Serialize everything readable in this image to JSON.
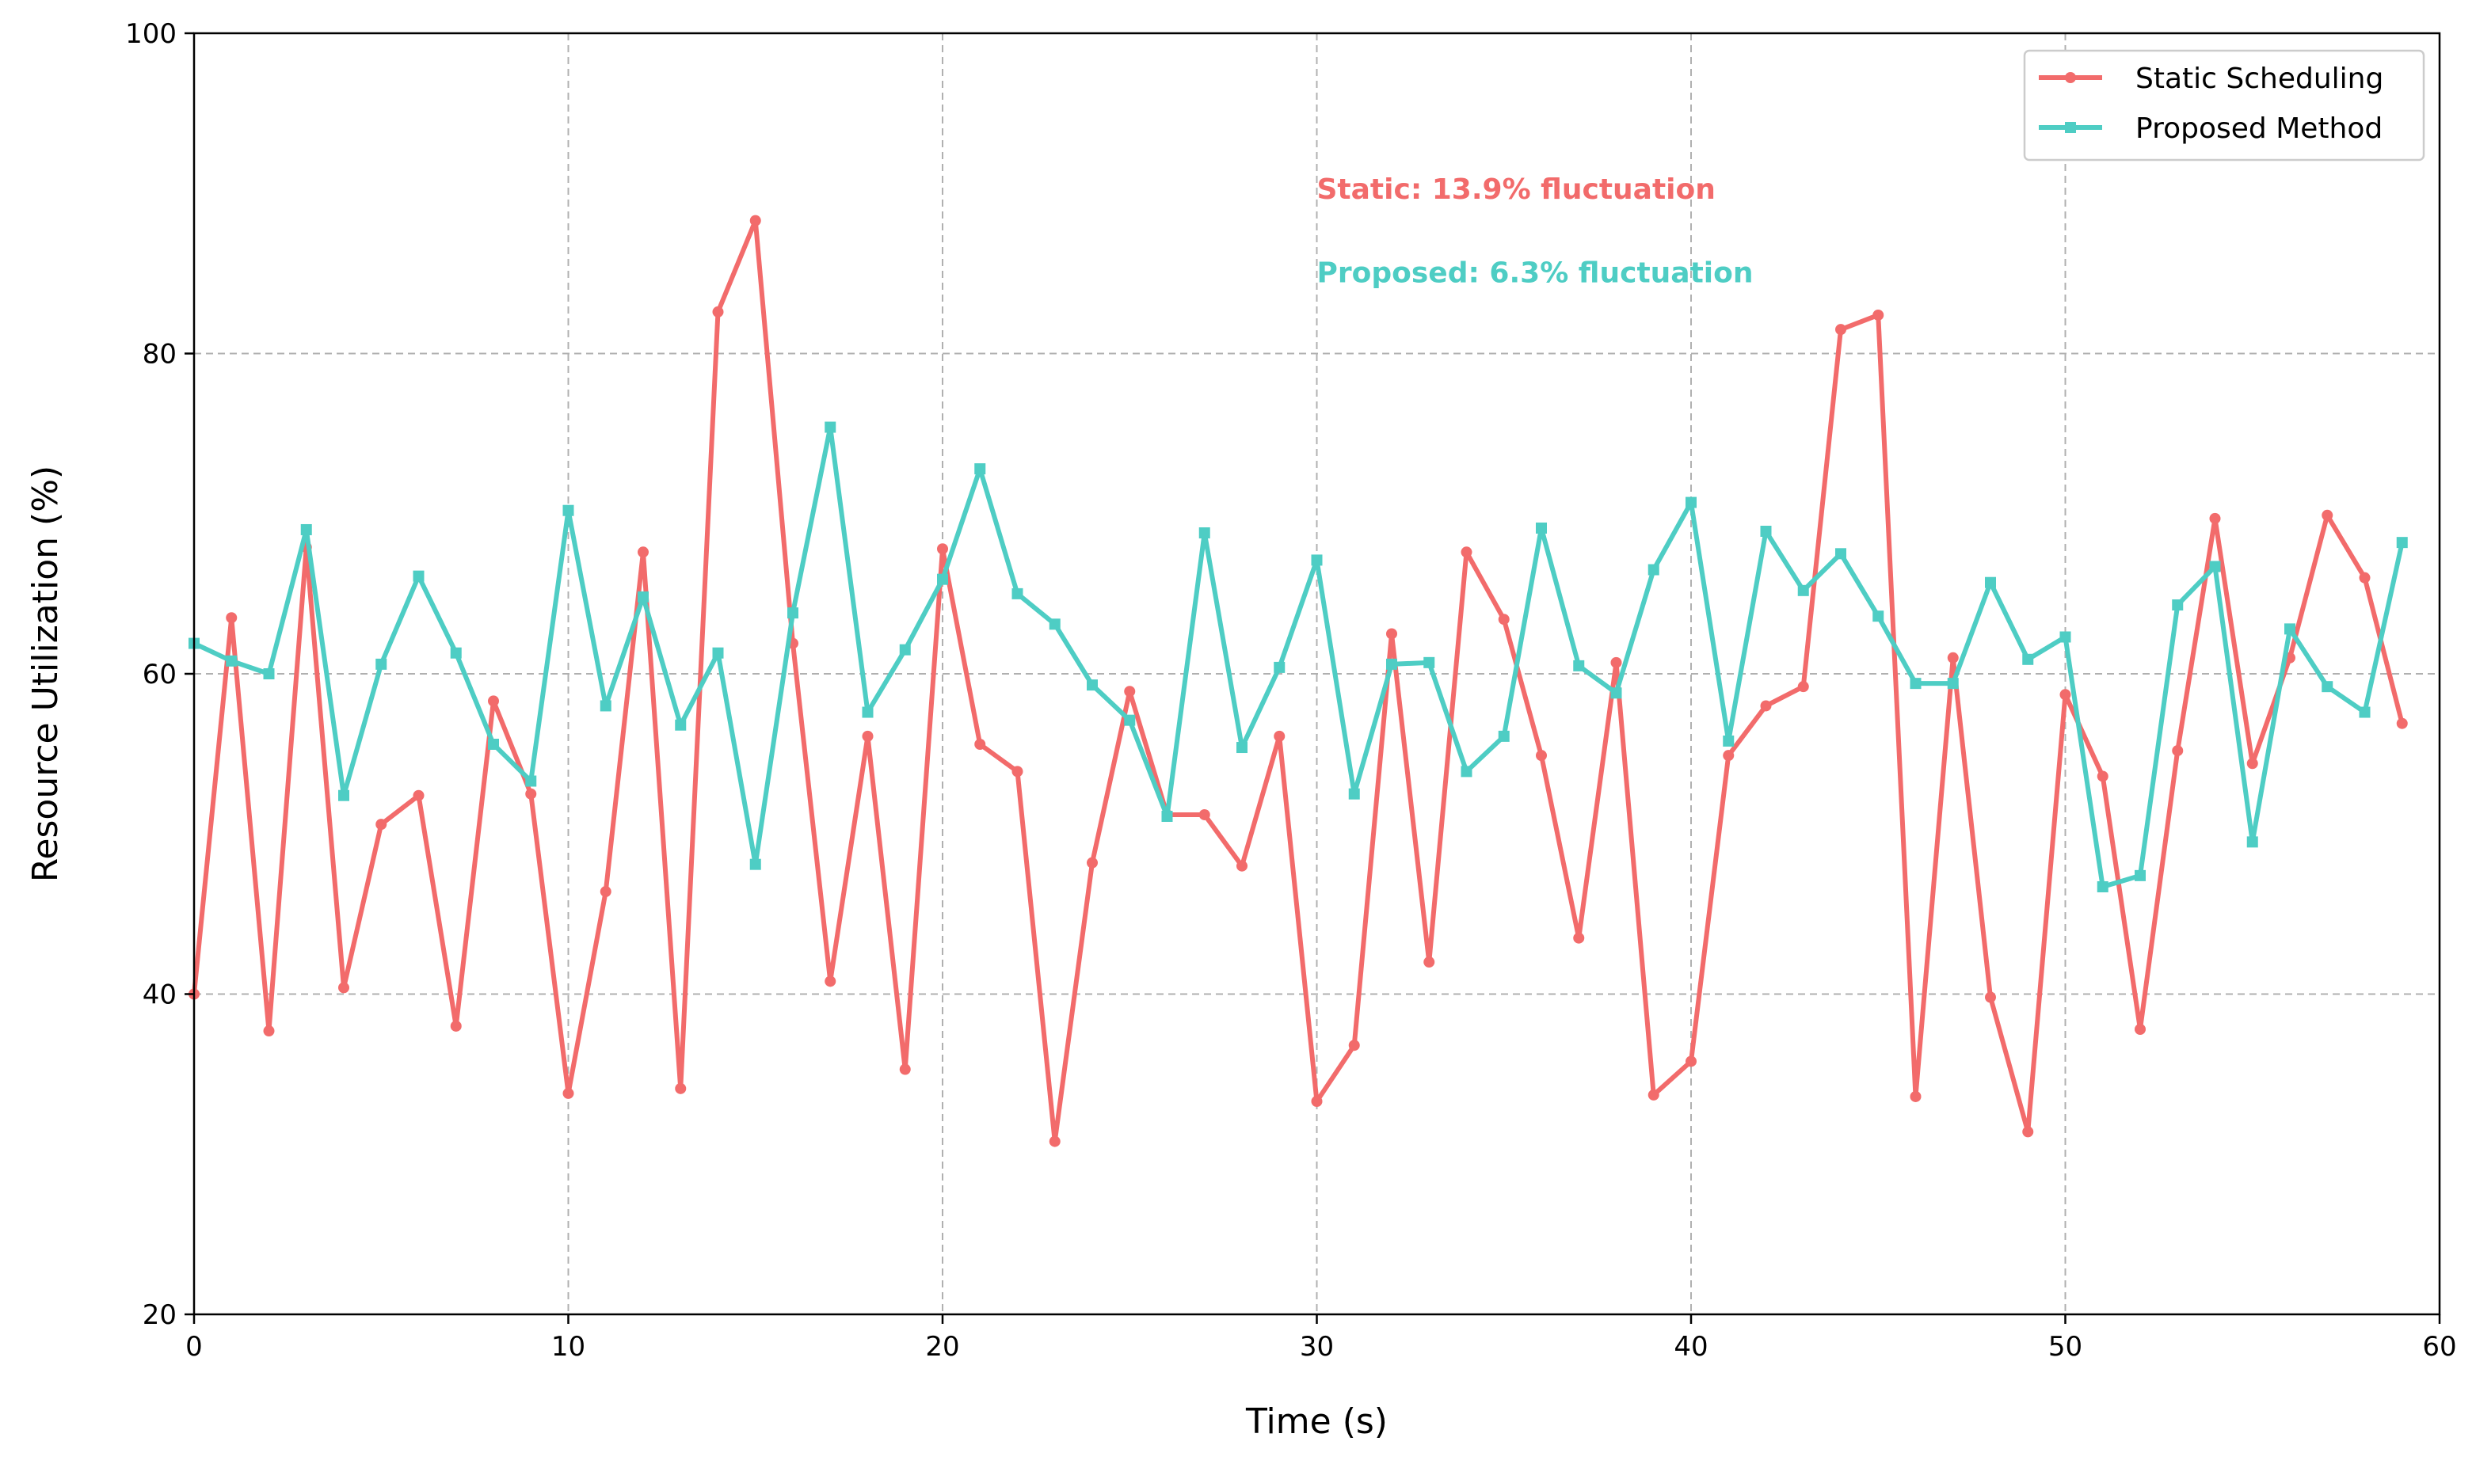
{
  "chart_data": {
    "type": "line",
    "title": "",
    "xlabel": "Time (s)",
    "ylabel": "Resource Utilization (%)",
    "xlim": [
      0,
      60
    ],
    "ylim": [
      20,
      100
    ],
    "xticks": [
      0,
      10,
      20,
      30,
      40,
      50,
      60
    ],
    "yticks": [
      20,
      40,
      60,
      80,
      100
    ],
    "grid": true,
    "legend_position": "top-right",
    "x": [
      0,
      1,
      2,
      3,
      4,
      5,
      6,
      7,
      8,
      9,
      10,
      11,
      12,
      13,
      14,
      15,
      16,
      17,
      18,
      19,
      20,
      21,
      22,
      23,
      24,
      25,
      26,
      27,
      28,
      29,
      30,
      31,
      32,
      33,
      34,
      35,
      36,
      37,
      38,
      39,
      40,
      41,
      42,
      43,
      44,
      45,
      46,
      47,
      48,
      49,
      50,
      51,
      52,
      53,
      54,
      55,
      56,
      57,
      58,
      59
    ],
    "series": [
      {
        "name": "Static Scheduling",
        "color": "#f26b6b",
        "marker": "circle",
        "values": [
          40.0,
          63.5,
          37.7,
          67.9,
          40.4,
          50.6,
          52.4,
          38.0,
          58.3,
          52.5,
          33.8,
          46.4,
          67.6,
          34.1,
          82.6,
          88.3,
          61.9,
          40.8,
          56.1,
          35.3,
          67.8,
          55.6,
          53.9,
          30.8,
          48.2,
          58.9,
          51.2,
          51.2,
          48.0,
          56.1,
          33.3,
          36.8,
          62.5,
          42.0,
          67.6,
          63.4,
          54.9,
          43.5,
          60.7,
          33.7,
          35.8,
          54.9,
          58.0,
          59.2,
          81.5,
          82.4,
          33.6,
          61.0,
          39.8,
          31.4,
          58.7,
          53.6,
          37.8,
          55.2,
          69.7,
          54.4,
          61.0,
          69.9,
          66.0,
          56.9
        ]
      },
      {
        "name": "Proposed Method",
        "color": "#4ecdc4",
        "marker": "square",
        "values": [
          61.9,
          60.8,
          60.0,
          69.0,
          52.4,
          60.6,
          66.1,
          61.3,
          55.6,
          53.3,
          70.2,
          58.0,
          64.8,
          56.8,
          61.3,
          48.1,
          63.8,
          75.4,
          57.6,
          61.5,
          65.9,
          72.8,
          65.0,
          63.1,
          59.3,
          57.1,
          51.1,
          68.8,
          55.4,
          60.4,
          67.1,
          52.5,
          60.6,
          60.7,
          53.9,
          56.1,
          69.1,
          60.5,
          58.8,
          66.5,
          70.7,
          55.8,
          68.9,
          65.2,
          67.5,
          63.6,
          59.4,
          59.4,
          65.7,
          60.9,
          62.3,
          46.7,
          47.4,
          64.3,
          66.7,
          49.5,
          62.8,
          59.2,
          57.6,
          68.2
        ]
      }
    ],
    "annotations": [
      {
        "text": "Static: 13.9% fluctuation",
        "color": "#f26b6b"
      },
      {
        "text": "Proposed: 6.3% fluctuation",
        "color": "#4ecdc4"
      }
    ]
  }
}
